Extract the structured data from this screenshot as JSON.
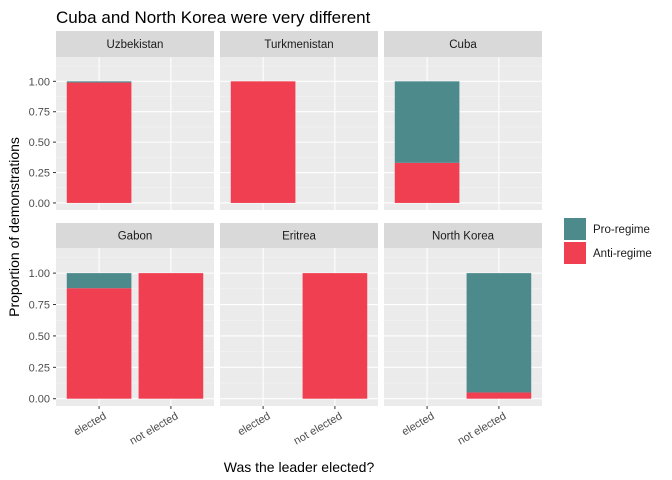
{
  "chart_data": {
    "type": "bar",
    "title": "Cuba and North Korea were very different",
    "xlabel": "Was the leader elected?",
    "ylabel": "Proportion of demonstrations",
    "ylim": [
      0,
      1.2
    ],
    "yticks": [
      "0.00",
      "0.25",
      "0.50",
      "0.75",
      "1.00"
    ],
    "ytick_values": [
      0,
      0.25,
      0.5,
      0.75,
      1.0
    ],
    "categories": [
      "elected",
      "not elected"
    ],
    "legend": {
      "placement": "right",
      "entries": [
        {
          "name": "Pro-regime",
          "color": "#4d8a8c"
        },
        {
          "name": "Anti-regime",
          "color": "#ef3f50"
        }
      ]
    },
    "facets": [
      {
        "name": "Uzbekistan",
        "bars": [
          {
            "x": "elected",
            "anti": 0.99,
            "pro": 0.01
          }
        ]
      },
      {
        "name": "Turkmenistan",
        "bars": [
          {
            "x": "elected",
            "anti": 1.0,
            "pro": 0.0
          }
        ]
      },
      {
        "name": "Cuba",
        "bars": [
          {
            "x": "elected",
            "anti": 0.33,
            "pro": 0.67
          }
        ]
      },
      {
        "name": "Gabon",
        "bars": [
          {
            "x": "elected",
            "anti": 0.88,
            "pro": 0.12
          },
          {
            "x": "not elected",
            "anti": 1.0,
            "pro": 0.0
          }
        ]
      },
      {
        "name": "Eritrea",
        "bars": [
          {
            "x": "not elected",
            "anti": 1.0,
            "pro": 0.0
          }
        ]
      },
      {
        "name": "North Korea",
        "bars": [
          {
            "x": "not elected",
            "anti": 0.05,
            "pro": 0.95
          }
        ]
      }
    ]
  }
}
